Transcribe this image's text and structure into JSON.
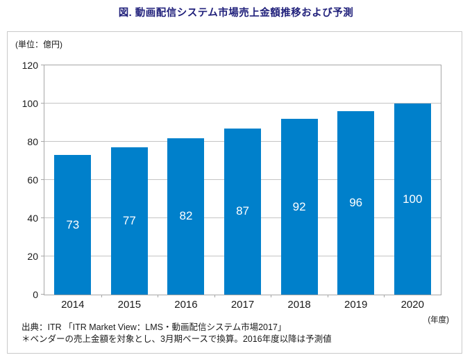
{
  "title": "図. 動画配信システム市場売上金額推移および予測",
  "unit_label": "(単位：億円)",
  "fiscal_year_label": "(年度)",
  "footer": {
    "source_line1": "出典：ITR 「ITR Market View：LMS・動画配信システム市場2017」",
    "source_line2": "＊ベンダーの売上金額を対象とし、3月期ベースで換算。2016年度以降は予測値"
  },
  "colors": {
    "bar": "#0080cb",
    "bar_label_text": "#ffffff",
    "title_text": "#1f1f7a",
    "gridline": "#c4c4c4",
    "plot_border": "#a6a6a6",
    "outer_border": "#c9c9c9"
  },
  "chart_data": {
    "type": "bar",
    "title": "図. 動画配信システム市場売上金額推移および予測",
    "categories": [
      "2014",
      "2015",
      "2016",
      "2017",
      "2018",
      "2019",
      "2020"
    ],
    "values": [
      73,
      77,
      82,
      87,
      92,
      96,
      100
    ],
    "xlabel": "年度",
    "ylabel": "億円",
    "ylim": [
      0,
      120
    ],
    "yticks": [
      0,
      20,
      40,
      60,
      80,
      100,
      120
    ],
    "grid": true,
    "legend": "none",
    "value_labels": "centered inside bars, white"
  }
}
